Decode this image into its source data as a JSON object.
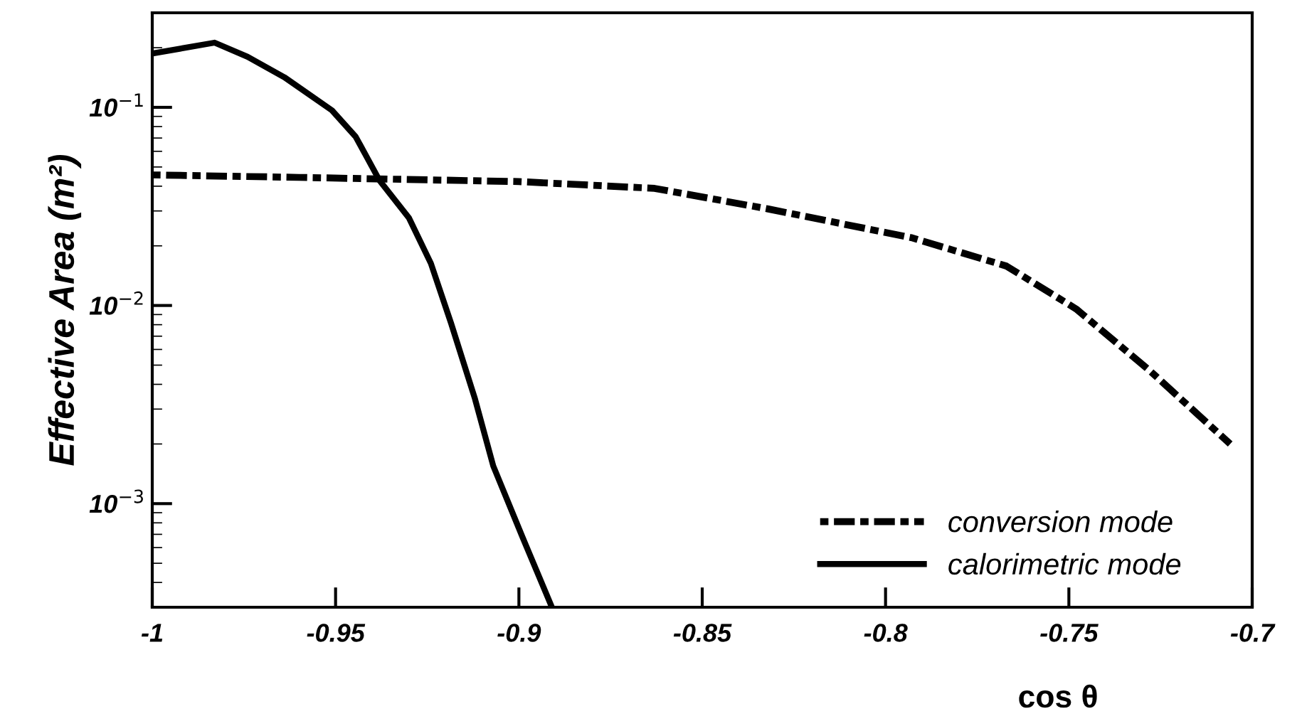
{
  "chart_data": {
    "type": "line",
    "xlabel": "cos θ",
    "ylabel": "Effective Area (m²)",
    "xlim": [
      -1,
      -0.7
    ],
    "xticks": [
      -1,
      -0.95,
      -0.9,
      -0.85,
      -0.8,
      -0.75,
      -0.7
    ],
    "ylim": [
      0.0003,
      0.3
    ],
    "log": "y",
    "yticks": [
      {
        "value": 0.001,
        "label": "10$^{−3}$"
      },
      {
        "value": 0.01,
        "label": "10$^{−2}$"
      },
      {
        "value": 0.1,
        "label": "10$^{−1}$"
      }
    ],
    "grid": false,
    "legend": "bottom right",
    "marker": "none",
    "series": [
      {
        "name": "conversion mode",
        "color": "#000000",
        "line_style": "dotted",
        "x": [
          -1,
          -0.96,
          -0.9,
          -0.863,
          -0.832,
          -0.793,
          -0.767,
          -0.748,
          -0.728,
          -0.706
        ],
        "values": [
          0.0456,
          0.0443,
          0.0422,
          0.039,
          0.0307,
          0.022,
          0.0158,
          0.0096,
          0.0047,
          0.002
        ]
      },
      {
        "name": "calorimetric mode",
        "color": "#000000",
        "line_style": "solid",
        "x": [
          -1,
          -0.983,
          -0.974,
          -0.964,
          -0.951,
          -0.9445,
          -0.938,
          -0.93,
          -0.924,
          -0.9185,
          -0.912,
          -0.907,
          -0.899,
          -0.891
        ],
        "values": [
          0.187,
          0.212,
          0.18,
          0.142,
          0.0966,
          0.071,
          0.0427,
          0.0277,
          0.0163,
          0.00813,
          0.00339,
          0.00155,
          0.000676,
          0.0003
        ]
      }
    ]
  }
}
